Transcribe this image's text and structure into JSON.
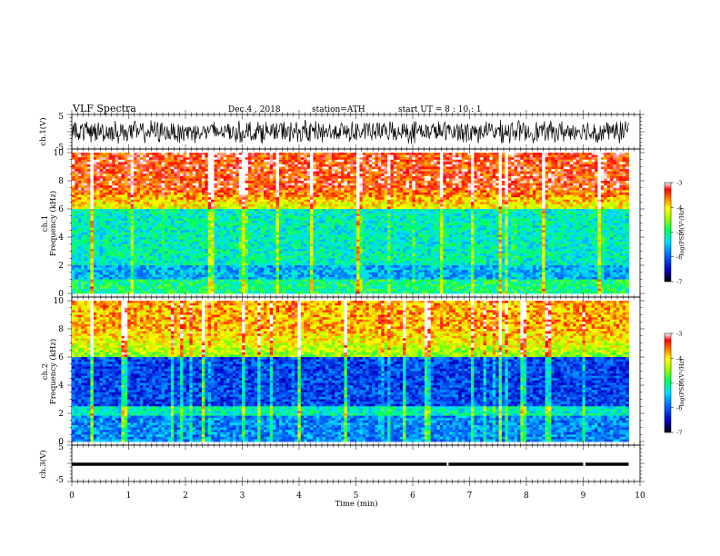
{
  "header": {
    "title": "VLF  Spectra",
    "date": "Dec.4  , 2018",
    "station": "station=ATH",
    "start": "start  UT  =   8  : 10 : 1"
  },
  "chart_data": [
    {
      "type": "line",
      "name": "ch1-waveform",
      "ylabel": "ch.1(V)",
      "ylim": [
        -5,
        5
      ],
      "yticks": [
        "5",
        "-5"
      ],
      "xlim": [
        0,
        10
      ],
      "amplitude_description_value": 1.2
    },
    {
      "type": "heatmap",
      "name": "ch1-spectrogram",
      "ylabel": "ch.1\nFrequency (kHz)",
      "ylim": [
        0,
        10
      ],
      "yticks": [
        "0",
        "2",
        "4",
        "6",
        "8",
        "10"
      ],
      "xlim": [
        0,
        9.8
      ],
      "colorbar": {
        "label": "log(PSD)(V²/Hz)",
        "range": [
          -7,
          -3
        ],
        "ticks": [
          "-3",
          "-4",
          "-5",
          "-6",
          "-7"
        ]
      }
    },
    {
      "type": "heatmap",
      "name": "ch2-spectrogram",
      "ylabel": "ch.2\nFrequency (kHz)",
      "ylim": [
        0,
        10
      ],
      "yticks": [
        "0",
        "2",
        "4",
        "6",
        "8",
        "10"
      ],
      "xlim": [
        0,
        9.8
      ],
      "colorbar": {
        "label": "log(PSD)(V²/Hz)",
        "range": [
          -7,
          -3
        ],
        "ticks": [
          "-3",
          "-4",
          "-5",
          "-6",
          "-7"
        ]
      }
    },
    {
      "type": "line",
      "name": "ch3-waveform",
      "ylabel": "ch.3(V)",
      "ylim": [
        -5,
        5
      ],
      "yticks": [
        "5",
        "-5"
      ],
      "xlim": [
        0,
        10
      ],
      "level": 0,
      "gaps_min": [
        6.6,
        9.0
      ]
    }
  ],
  "xaxis": {
    "label": "Time  (min)",
    "ticks": [
      "0",
      "1",
      "2",
      "3",
      "4",
      "5",
      "6",
      "7",
      "8",
      "9",
      "10"
    ]
  }
}
